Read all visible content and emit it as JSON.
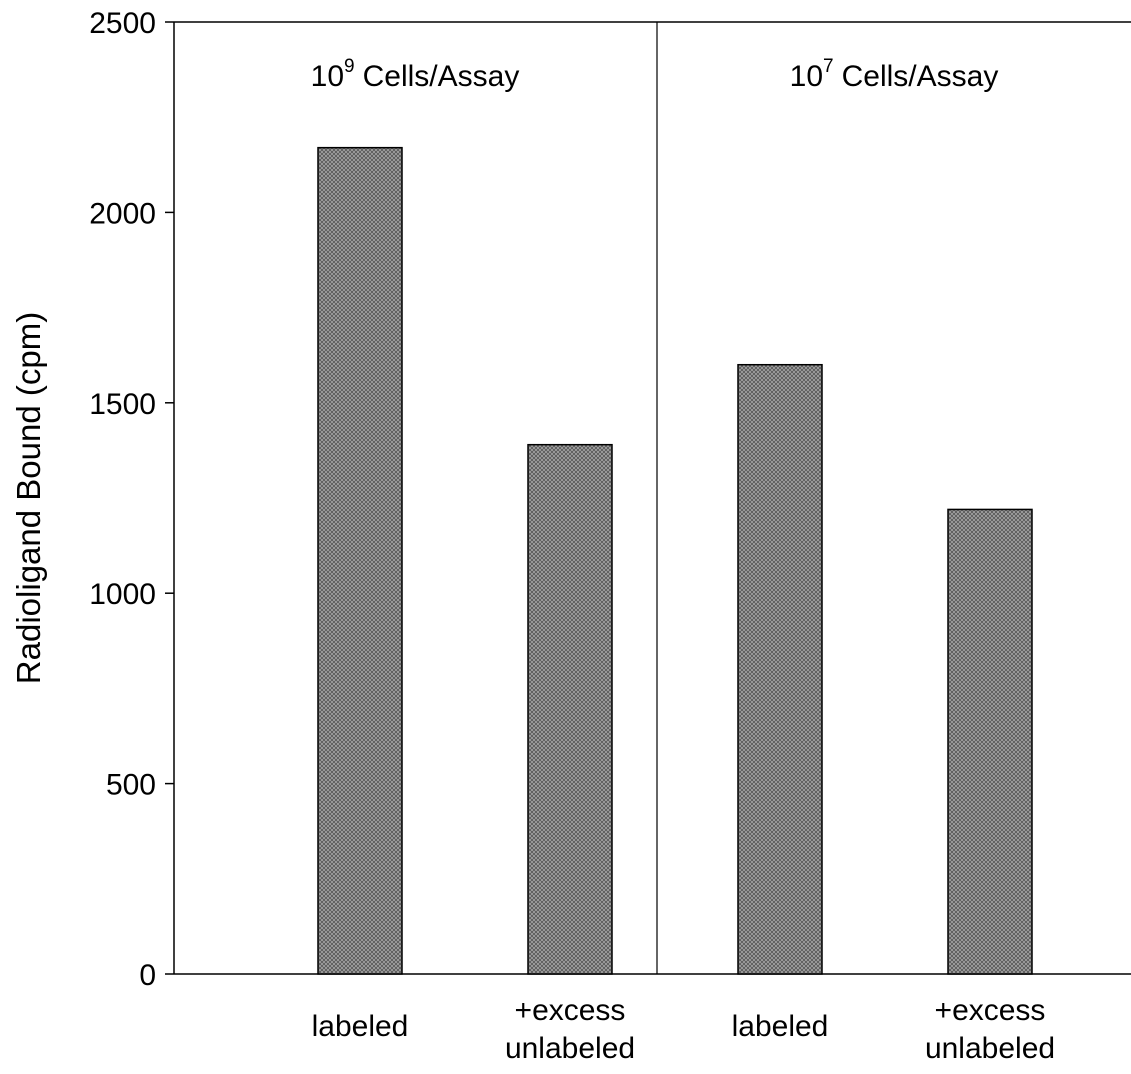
{
  "chart_data": {
    "type": "bar",
    "y_label": "Radioligand Bound (cpm)",
    "panels": [
      {
        "base": "10",
        "exponent": "9",
        "text": "Cells/Assay"
      },
      {
        "base": "10",
        "exponent": "7",
        "text": "Cells/Assay"
      }
    ],
    "categories": [
      [
        "labeled"
      ],
      [
        "+excess",
        "unlabeled"
      ],
      [
        "labeled"
      ],
      [
        "+excess",
        "unlabeled"
      ]
    ],
    "values": [
      2170,
      1390,
      1600,
      1220
    ],
    "color": "#a6a6a6",
    "ylim": [
      0,
      2500
    ],
    "yticks": [
      0,
      500,
      1000,
      1500,
      2000,
      2500
    ],
    "grid": false
  }
}
